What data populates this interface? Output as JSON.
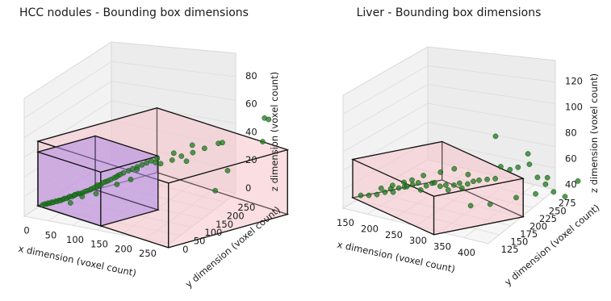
{
  "chart_data": [
    {
      "type": "scatter",
      "title": "HCC nodules - Bounding box dimensions",
      "xlabel": "x dimension (voxel count)",
      "ylabel": "y dimension (voxel count)",
      "zlabel": "z dimension (voxel count)",
      "xlim": [
        0,
        280
      ],
      "ylim": [
        0,
        280
      ],
      "zlim": [
        0,
        90
      ],
      "xticks": [
        "0",
        "50",
        "100",
        "150",
        "200",
        "250"
      ],
      "yticks": [
        "0",
        "50",
        "100",
        "150",
        "200",
        "250"
      ],
      "zticks": [
        "0",
        "20",
        "40",
        "60",
        "80"
      ],
      "boxes": [
        {
          "color": "#f5c6cc",
          "x": [
            0,
            270
          ],
          "y": [
            0,
            270
          ],
          "z": [
            0,
            60
          ]
        },
        {
          "color": "#b28ce6",
          "x": [
            0,
            130
          ],
          "y": [
            0,
            130
          ],
          "z": [
            0,
            50
          ]
        }
      ],
      "point_color": "#1e7a1e",
      "points": [
        [
          5,
          5,
          1
        ],
        [
          8,
          7,
          2
        ],
        [
          10,
          9,
          2
        ],
        [
          12,
          10,
          3
        ],
        [
          14,
          12,
          3
        ],
        [
          16,
          14,
          4
        ],
        [
          18,
          15,
          4
        ],
        [
          20,
          18,
          5
        ],
        [
          22,
          20,
          5
        ],
        [
          24,
          22,
          6
        ],
        [
          26,
          23,
          6
        ],
        [
          28,
          26,
          7
        ],
        [
          30,
          27,
          8
        ],
        [
          32,
          30,
          8
        ],
        [
          34,
          32,
          9
        ],
        [
          36,
          33,
          10
        ],
        [
          38,
          36,
          10
        ],
        [
          40,
          38,
          11
        ],
        [
          42,
          40,
          12
        ],
        [
          45,
          42,
          13
        ],
        [
          48,
          44,
          13
        ],
        [
          50,
          46,
          14
        ],
        [
          52,
          50,
          15
        ],
        [
          55,
          52,
          16
        ],
        [
          58,
          55,
          17
        ],
        [
          60,
          56,
          18
        ],
        [
          62,
          60,
          19
        ],
        [
          65,
          62,
          20
        ],
        [
          68,
          65,
          21
        ],
        [
          70,
          66,
          22
        ],
        [
          72,
          70,
          24
        ],
        [
          75,
          72,
          25
        ],
        [
          78,
          74,
          26
        ],
        [
          80,
          78,
          27
        ],
        [
          85,
          80,
          29
        ],
        [
          88,
          85,
          31
        ],
        [
          90,
          88,
          32
        ],
        [
          95,
          90,
          34
        ],
        [
          100,
          96,
          36
        ],
        [
          105,
          100,
          38
        ],
        [
          110,
          105,
          40
        ],
        [
          115,
          110,
          42
        ],
        [
          120,
          115,
          44
        ],
        [
          125,
          120,
          46
        ],
        [
          130,
          128,
          48
        ],
        [
          40,
          30,
          5
        ],
        [
          35,
          45,
          10
        ],
        [
          55,
          40,
          12
        ],
        [
          60,
          70,
          20
        ],
        [
          70,
          55,
          15
        ],
        [
          80,
          90,
          28
        ],
        [
          95,
          75,
          25
        ],
        [
          100,
          115,
          35
        ],
        [
          110,
          90,
          30
        ],
        [
          120,
          135,
          42
        ],
        [
          140,
          125,
          45
        ],
        [
          150,
          140,
          48
        ],
        [
          135,
          160,
          50
        ],
        [
          160,
          150,
          52
        ],
        [
          170,
          165,
          55
        ],
        [
          155,
          180,
          58
        ],
        [
          175,
          145,
          50
        ],
        [
          185,
          175,
          60
        ],
        [
          200,
          190,
          65
        ],
        [
          190,
          210,
          62
        ],
        [
          210,
          200,
          40
        ],
        [
          230,
          150,
          30
        ],
        [
          250,
          240,
          90
        ],
        [
          255,
          230,
          70
        ],
        [
          240,
          260,
          85
        ]
      ]
    },
    {
      "type": "scatter",
      "title": "Liver - Bounding box dimensions",
      "xlabel": "x dimension (voxel count)",
      "ylabel": "y dimension (voxel count)",
      "zlabel": "z dimension (voxel count)",
      "xlim": [
        130,
        410
      ],
      "ylim": [
        115,
        290
      ],
      "zlim": [
        25,
        125
      ],
      "xticks": [
        "150",
        "200",
        "250",
        "300",
        "350",
        "400"
      ],
      "yticks": [
        "125",
        "150",
        "175",
        "200",
        "225",
        "250",
        "275"
      ],
      "zticks": [
        "40",
        "60",
        "80",
        "100",
        "120"
      ],
      "boxes": [
        {
          "color": "#f5c6cc",
          "x": [
            130,
            300
          ],
          "y": [
            115,
            250
          ],
          "z": [
            25,
            75
          ]
        }
      ],
      "point_color": "#1e7a1e",
      "points": [
        [
          140,
          120,
          30
        ],
        [
          150,
          125,
          32
        ],
        [
          160,
          130,
          35
        ],
        [
          170,
          135,
          40
        ],
        [
          175,
          140,
          45
        ],
        [
          180,
          140,
          42
        ],
        [
          185,
          145,
          48
        ],
        [
          190,
          150,
          50
        ],
        [
          195,
          150,
          52
        ],
        [
          200,
          155,
          55
        ],
        [
          205,
          160,
          58
        ],
        [
          210,
          160,
          50
        ],
        [
          215,
          165,
          56
        ],
        [
          220,
          170,
          60
        ],
        [
          225,
          170,
          62
        ],
        [
          230,
          175,
          58
        ],
        [
          235,
          180,
          60
        ],
        [
          240,
          180,
          55
        ],
        [
          245,
          185,
          62
        ],
        [
          250,
          190,
          65
        ],
        [
          255,
          190,
          60
        ],
        [
          260,
          195,
          66
        ],
        [
          265,
          200,
          70
        ],
        [
          270,
          205,
          72
        ],
        [
          280,
          210,
          75
        ],
        [
          290,
          215,
          78
        ],
        [
          300,
          230,
          90
        ],
        [
          310,
          235,
          95
        ],
        [
          320,
          245,
          100
        ],
        [
          330,
          250,
          85
        ],
        [
          340,
          255,
          78
        ],
        [
          350,
          260,
          70
        ],
        [
          360,
          270,
          65
        ],
        [
          380,
          275,
          90
        ],
        [
          300,
          200,
          50
        ],
        [
          280,
          185,
          45
        ],
        [
          320,
          225,
          60
        ],
        [
          340,
          240,
          68
        ],
        [
          270,
          230,
          125
        ],
        [
          310,
          250,
          110
        ],
        [
          330,
          265,
          82
        ],
        [
          260,
          245,
          80
        ],
        [
          240,
          210,
          70
        ],
        [
          225,
          200,
          75
        ],
        [
          210,
          190,
          68
        ],
        [
          195,
          175,
          62
        ],
        [
          185,
          165,
          55
        ],
        [
          175,
          160,
          50
        ],
        [
          165,
          150,
          45
        ],
        [
          155,
          140,
          40
        ]
      ]
    }
  ]
}
